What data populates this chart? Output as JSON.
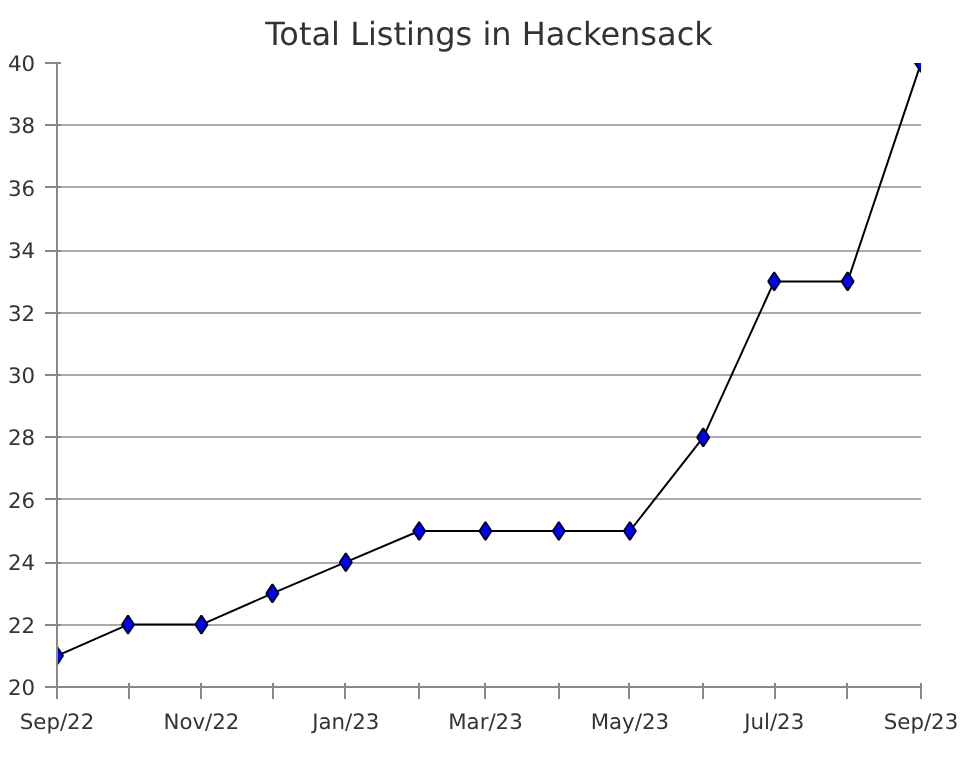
{
  "chart_data": {
    "type": "line",
    "title": "Total Listings in Hackensack",
    "x": [
      "2022-09",
      "2022-10",
      "2022-11",
      "2022-12",
      "2023-01",
      "2023-02",
      "2023-03",
      "2023-04",
      "2023-05",
      "2023-06",
      "2023-07",
      "2023-08",
      "2023-09"
    ],
    "series": [
      {
        "color": "#0000ff",
        "values": [
          21,
          22,
          22,
          23,
          24,
          25,
          25,
          25,
          25,
          28,
          33,
          33,
          40
        ]
      }
    ],
    "marker": "diamond",
    "xlim": [
      "2022-09",
      "2023-09"
    ],
    "xticks": [
      {
        "value": "2022-09",
        "label": "Sep/22"
      },
      {
        "value": "2022-10",
        "label": null
      },
      {
        "value": "2022-11",
        "label": "Nov/22"
      },
      {
        "value": "2022-12",
        "label": null
      },
      {
        "value": "2023-01",
        "label": "Jan/23"
      },
      {
        "value": "2023-02",
        "label": null
      },
      {
        "value": "2023-03",
        "label": "Mar/23"
      },
      {
        "value": "2023-04",
        "label": null
      },
      {
        "value": "2023-05",
        "label": "May/23"
      },
      {
        "value": "2023-06",
        "label": null
      },
      {
        "value": "2023-07",
        "label": "Jul/23"
      },
      {
        "value": "2023-08",
        "label": null
      },
      {
        "value": "2023-09",
        "label": "Sep/23"
      }
    ],
    "ylim": [
      20,
      40
    ],
    "yticks": [
      20,
      22,
      24,
      26,
      28,
      30,
      32,
      34,
      36,
      38,
      40
    ],
    "grid": "y"
  }
}
